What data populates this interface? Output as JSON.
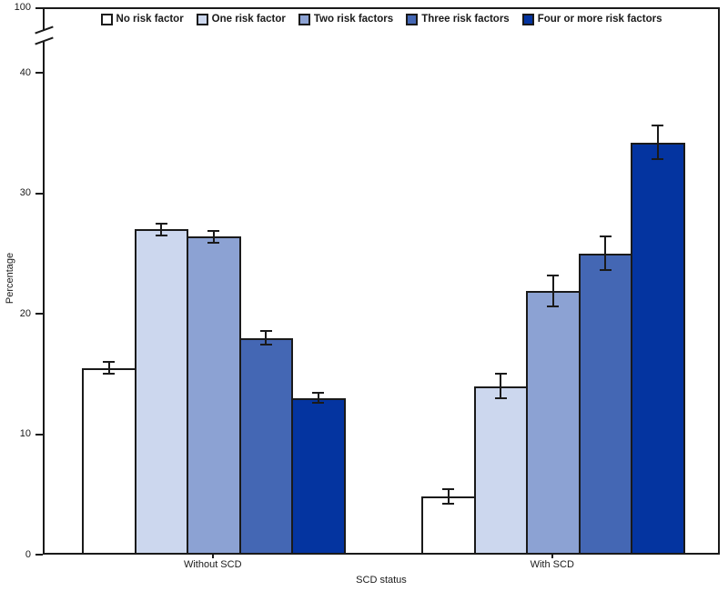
{
  "chart_data": {
    "type": "bar",
    "title": "",
    "xlabel": "SCD status",
    "ylabel": "Percentage",
    "categories": [
      "Without SCD",
      "With SCD"
    ],
    "series": [
      {
        "name": "No risk factor",
        "color": "#ffffff",
        "values": [
          15.5,
          4.8
        ],
        "errors": [
          0.5,
          0.6
        ]
      },
      {
        "name": "One risk factor",
        "color": "#ccd7ee",
        "values": [
          27.0,
          14.0
        ],
        "errors": [
          0.5,
          1.0
        ]
      },
      {
        "name": "Two risk factors",
        "color": "#8ca2d3",
        "values": [
          26.4,
          21.9
        ],
        "errors": [
          0.5,
          1.3
        ]
      },
      {
        "name": "Three risk factors",
        "color": "#4467b4",
        "values": [
          18.0,
          25.0
        ],
        "errors": [
          0.6,
          1.4
        ]
      },
      {
        "name": "Four or more risk factors",
        "color": "#0434a0",
        "values": [
          13.0,
          34.2
        ],
        "errors": [
          0.4,
          1.4
        ]
      }
    ],
    "y_ticks": [
      0,
      10,
      20,
      30,
      40
    ],
    "y_axis_break": {
      "upper_tick": "100",
      "between": [
        40,
        100
      ]
    },
    "ylim": [
      0,
      100
    ],
    "displayed_ylim": [
      0,
      40
    ],
    "legend_position": "top-center",
    "grid": false,
    "error_bars": true,
    "axis_color": "#1a1a1a",
    "background_color": "#ffffff"
  }
}
